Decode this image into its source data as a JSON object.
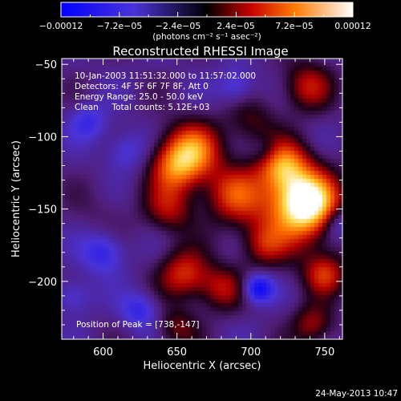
{
  "chart_data": {
    "type": "heatmap",
    "title": "Reconstructed RHESSI Image",
    "xlabel": "Heliocentric X (arcsec)",
    "ylabel": "Heliocentric Y (arcsec)",
    "xlim": [
      572,
      762
    ],
    "ylim": [
      -240,
      -46
    ],
    "x_ticks": [
      600,
      650,
      700,
      750
    ],
    "y_ticks": [
      -50,
      -100,
      -150,
      -200
    ],
    "x_tick_labels": [
      "600",
      "650",
      "700",
      "750"
    ],
    "y_tick_labels": [
      "−50",
      "−100",
      "−150",
      "−200"
    ],
    "colorbar": {
      "min": -0.00012,
      "max": 0.00012,
      "tick_labels": [
        "−0.00012",
        "−7.2e−05",
        "−2.4e−05",
        "2.4e−05",
        "7.2e−05",
        "0.00012"
      ],
      "units": "(photons cm⁻² s⁻¹ asec⁻²)"
    },
    "annotations": [
      "10-Jan-2003 11:51:32.000 to 11:57:02.000",
      "Detectors: 4F 5F 6F 7F 8F, Att 0",
      "Energy Range: 25.0 - 50.0 keV",
      "Clean     Total counts: 5.12E+03"
    ],
    "peak_label": "Position of Peak = [738,-147]",
    "peak": [
      738,
      -147
    ],
    "blobs": [
      {
        "x": 738,
        "y": -145,
        "a": 1.0,
        "s": 14
      },
      {
        "x": 728,
        "y": -152,
        "a": 0.55,
        "s": 22
      },
      {
        "x": 722,
        "y": -120,
        "a": 0.75,
        "s": 12
      },
      {
        "x": 660,
        "y": -110,
        "a": 0.8,
        "s": 14
      },
      {
        "x": 648,
        "y": -122,
        "a": 0.55,
        "s": 12
      },
      {
        "x": 688,
        "y": -140,
        "a": 0.55,
        "s": 14
      },
      {
        "x": 645,
        "y": -150,
        "a": 0.45,
        "s": 12
      },
      {
        "x": 655,
        "y": -195,
        "a": 0.6,
        "s": 12
      },
      {
        "x": 680,
        "y": -205,
        "a": 0.45,
        "s": 11
      },
      {
        "x": 738,
        "y": -65,
        "a": 0.5,
        "s": 12
      },
      {
        "x": 750,
        "y": -195,
        "a": 0.55,
        "s": 10
      },
      {
        "x": 742,
        "y": -230,
        "a": 0.45,
        "s": 10
      },
      {
        "x": 708,
        "y": -175,
        "a": 0.35,
        "s": 10
      },
      {
        "x": 650,
        "y": -232,
        "a": 0.35,
        "s": 10
      },
      {
        "x": 700,
        "y": -90,
        "a": 0.3,
        "s": 12
      },
      {
        "x": 600,
        "y": -150,
        "a": 0.1,
        "s": 14
      },
      {
        "x": 705,
        "y": -205,
        "a": -0.7,
        "s": 7
      },
      {
        "x": 600,
        "y": -180,
        "a": -0.45,
        "s": 10
      },
      {
        "x": 590,
        "y": -90,
        "a": -0.35,
        "s": 9
      },
      {
        "x": 625,
        "y": -220,
        "a": -0.4,
        "s": 9
      },
      {
        "x": 690,
        "y": -65,
        "a": -0.35,
        "s": 9
      },
      {
        "x": 760,
        "y": -160,
        "a": -0.4,
        "s": 8
      },
      {
        "x": 615,
        "y": -110,
        "a": -0.3,
        "s": 10
      },
      {
        "x": 580,
        "y": -210,
        "a": -0.3,
        "s": 9
      },
      {
        "x": 710,
        "y": -110,
        "a": -0.2,
        "s": 7
      }
    ],
    "base_level": -0.25
  },
  "footer": {
    "date": "24-May-2013 10:47"
  }
}
